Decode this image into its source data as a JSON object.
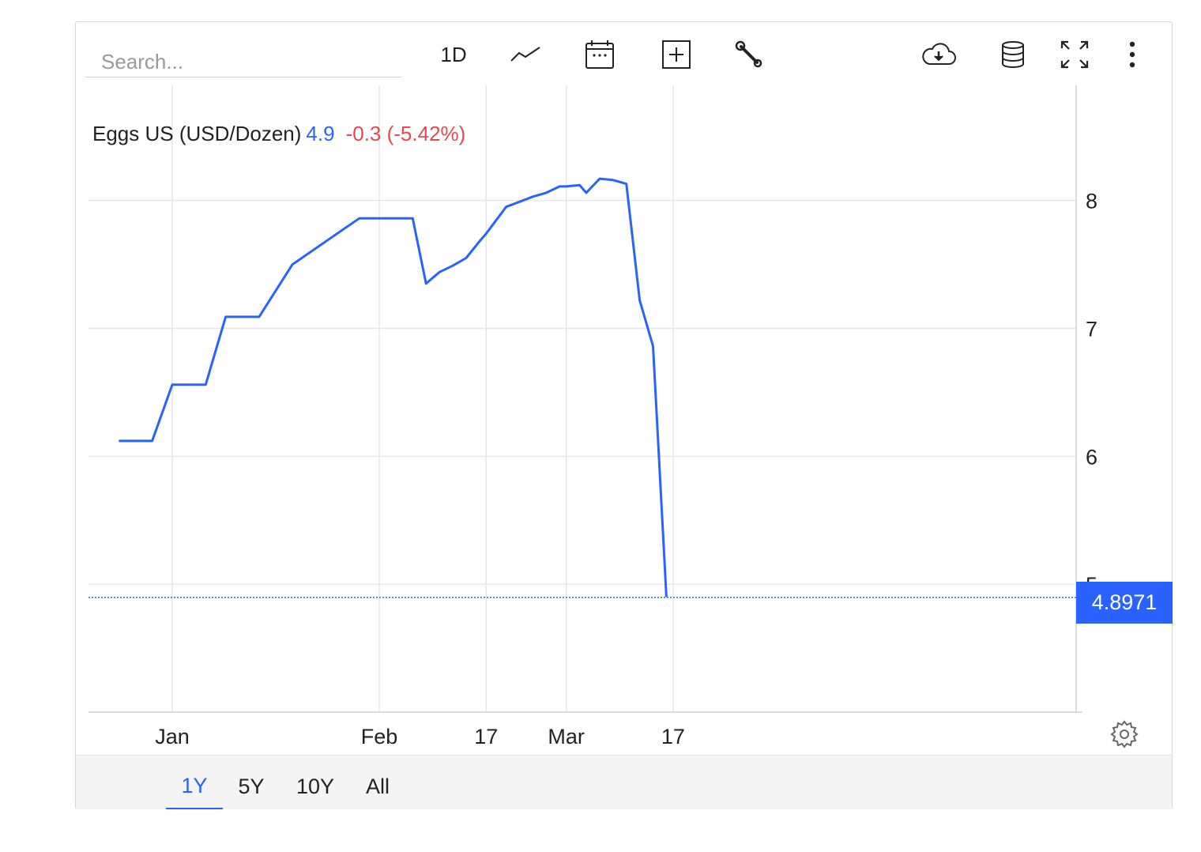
{
  "toolbar": {
    "search_placeholder": "Search...",
    "interval_label": "1D",
    "icons": [
      "line-chart-icon",
      "calendar-icon",
      "plus-box-icon",
      "wrench-icon",
      "cloud-download-icon",
      "database-icon",
      "fullscreen-icon",
      "more-vert-icon"
    ]
  },
  "legend": {
    "name": "Eggs US (USD/Dozen)",
    "value": "4.9",
    "change": "-0.3 (-5.42%)"
  },
  "price_tag": "4.8971",
  "range_buttons": [
    "1Y",
    "5Y",
    "10Y",
    "All"
  ],
  "active_range": "1Y",
  "colors": {
    "line": "#2962ff",
    "negative": "#e5484d",
    "grid": "#e6e6e6"
  },
  "chart_data": {
    "type": "line",
    "title": "",
    "xlabel": "",
    "ylabel": "",
    "x_ticks": [
      "Jan",
      "Feb",
      "17",
      "Mar",
      "17"
    ],
    "x_tick_dates": [
      "2025-01-01",
      "2025-02-01",
      "2025-02-17",
      "2025-03-01",
      "2025-03-17"
    ],
    "y_ticks": [
      "5",
      "6",
      "7",
      "8"
    ],
    "y_tick_values": [
      5,
      6,
      7,
      8
    ],
    "ylim": [
      4,
      8.9
    ],
    "grid": true,
    "last_value_line": 4.8971,
    "series": [
      {
        "name": "",
        "x": [
          "2024-12-24",
          "2024-12-29",
          "2025-01-01",
          "2025-01-06",
          "2025-01-09",
          "2025-01-14",
          "2025-01-19",
          "2025-01-29",
          "2025-02-01",
          "2025-02-06",
          "2025-02-08",
          "2025-02-10",
          "2025-02-12",
          "2025-02-14",
          "2025-02-16",
          "2025-02-17",
          "2025-02-20",
          "2025-02-22",
          "2025-02-24",
          "2025-02-26",
          "2025-02-28",
          "2025-03-01",
          "2025-03-03",
          "2025-03-04",
          "2025-03-06",
          "2025-03-08",
          "2025-03-10",
          "2025-03-12",
          "2025-03-14",
          "2025-03-16"
        ],
        "y": [
          6.12,
          6.12,
          6.56,
          6.56,
          7.09,
          7.09,
          7.5,
          7.86,
          7.86,
          7.86,
          7.35,
          7.44,
          7.49,
          7.55,
          7.68,
          7.74,
          7.95,
          7.99,
          8.03,
          8.06,
          8.11,
          8.11,
          8.12,
          8.06,
          8.17,
          8.16,
          8.13,
          7.22,
          6.86,
          4.9
        ]
      }
    ]
  }
}
